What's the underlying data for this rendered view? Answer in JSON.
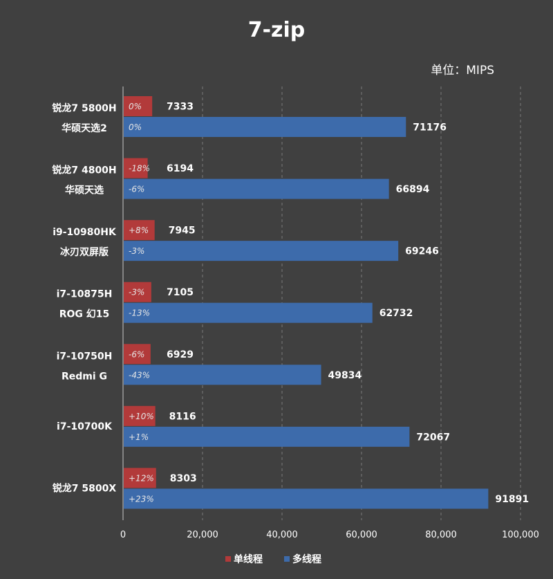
{
  "chart_data": {
    "type": "bar",
    "orientation": "horizontal",
    "title": "7-zip",
    "unit_label": "单位：MIPS",
    "categories": [
      [
        "锐龙7 5800H",
        "华硕天选2"
      ],
      [
        "锐龙7 4800H",
        "华硕天选"
      ],
      [
        "i9-10980HK",
        "冰刃双屏版"
      ],
      [
        "i7-10875H",
        "ROG 幻15"
      ],
      [
        "i7-10750H",
        "Redmi G"
      ],
      [
        "i7-10700K"
      ],
      [
        "锐龙7 5800X"
      ]
    ],
    "series": [
      {
        "name": "单线程",
        "color": "#b23a3a",
        "values": [
          7333,
          6194,
          7945,
          7105,
          6929,
          8116,
          8303
        ],
        "pct_labels": [
          "0%",
          "-18%",
          "+8%",
          "-3%",
          "-6%",
          "+10%",
          "+12%"
        ]
      },
      {
        "name": "多线程",
        "color": "#3d6bab",
        "values": [
          71176,
          66894,
          69246,
          62732,
          49834,
          72067,
          91891
        ],
        "pct_labels": [
          "0%",
          "-6%",
          "-3%",
          "-13%",
          "-43%",
          "+1%",
          "+23%"
        ]
      }
    ],
    "xlim": [
      0,
      100000
    ],
    "x_ticks": [
      "0",
      "20,000",
      "40,000",
      "60,000",
      "80,000",
      "100,000"
    ],
    "x_tick_values": [
      0,
      20000,
      40000,
      60000,
      80000,
      100000
    ],
    "grid": "vertical-dashed",
    "legend_position": "bottom",
    "background": "#404040"
  }
}
